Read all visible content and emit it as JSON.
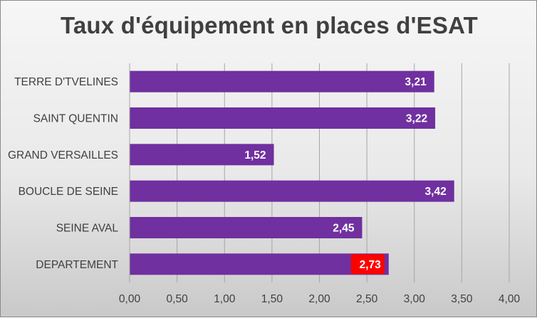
{
  "chart_data": {
    "type": "bar",
    "orientation": "horizontal",
    "title": "Taux d'équipement en places d'ESAT",
    "xlabel": "",
    "ylabel": "",
    "categories": [
      "TERRE D'TVELINES",
      "SAINT QUENTIN",
      "GRAND VERSAILLES",
      "BOUCLE DE SEINE",
      "SEINE AVAL",
      "DEPARTEMENT"
    ],
    "values": [
      3.21,
      3.22,
      1.52,
      3.42,
      2.45,
      2.73
    ],
    "data_labels": [
      "3,21",
      "3,22",
      "1,52",
      "3,42",
      "2,45",
      "2,73"
    ],
    "xlim": [
      0,
      4
    ],
    "x_ticks": [
      "0,00",
      "0,50",
      "1,00",
      "1,50",
      "2,00",
      "2,50",
      "3,00",
      "3,50",
      "4,00"
    ],
    "x_tick_values": [
      0,
      0.5,
      1,
      1.5,
      2,
      2.5,
      3,
      3.5,
      4
    ],
    "grid": "vertical",
    "legend": "none",
    "bar_color": "#7030a0",
    "highlight_label_color": "#ff0000",
    "highlight_category": "DEPARTEMENT"
  }
}
